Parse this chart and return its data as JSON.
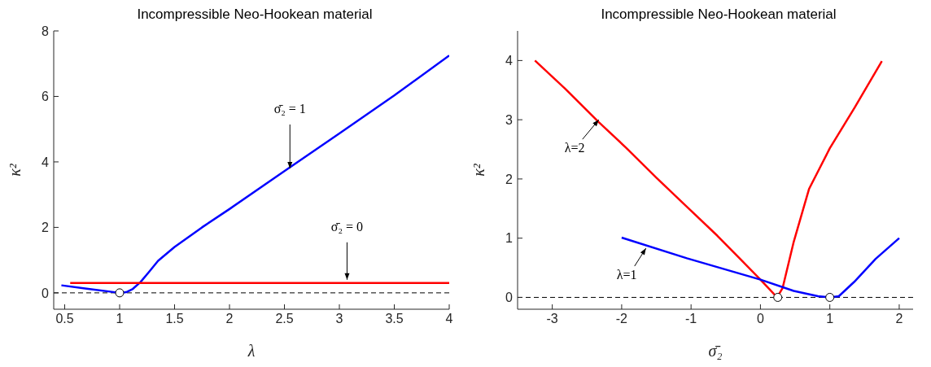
{
  "chart_data": [
    {
      "type": "line",
      "title": "Incompressible Neo-Hookean material",
      "xlabel": "λ",
      "ylabel": "κ²",
      "xlim": [
        0.4,
        4
      ],
      "ylim": [
        -0.5,
        8
      ],
      "xticks": [
        0.5,
        1,
        1.5,
        2,
        2.5,
        3,
        3.5,
        4
      ],
      "yticks": [
        0,
        2,
        4,
        6,
        8
      ],
      "line_style": "solid",
      "marker": "none",
      "series": [
        {
          "color": "#0000ff",
          "x": [
            0.47,
            0.7,
            1,
            1.06,
            1.12,
            1.19,
            1.27,
            1.35,
            1.5,
            1.75,
            2,
            2.5,
            3,
            3.5,
            4
          ],
          "values": [
            0.23,
            0.13,
            0,
            0.02,
            0.12,
            0.33,
            0.65,
            0.98,
            1.4,
            2.0,
            2.56,
            3.72,
            4.87,
            6.03,
            7.25
          ]
        },
        {
          "color": "#ff0000",
          "x": [
            0.55,
            4
          ],
          "values": [
            0.3,
            0.3
          ]
        },
        {
          "type": "scatter",
          "marker": "circle",
          "color": "#ffffff",
          "x": [
            1
          ],
          "values": [
            0
          ]
        }
      ],
      "ref_lines": [
        {
          "axis": "y",
          "value": 0,
          "color": "#000000",
          "line_style": "dashed"
        }
      ],
      "annotations": [
        {
          "text": "σ̄₂ = 1",
          "x": 2.55,
          "y": 3.8
        },
        {
          "text": "σ̄₂ = 0",
          "x": 3.07,
          "y": 0.4
        }
      ]
    },
    {
      "type": "line",
      "title": "Incompressible Neo-Hookean material",
      "xlabel": "σ̄₂",
      "ylabel": "κ²",
      "xlim": [
        -3.5,
        2.2
      ],
      "ylim": [
        -0.2,
        4.5
      ],
      "xticks": [
        -3,
        -2,
        -1,
        0,
        1,
        2
      ],
      "yticks": [
        0,
        1,
        2,
        3,
        4
      ],
      "line_style": "solid",
      "marker": "none",
      "series": [
        {
          "color": "#ff0000",
          "x": [
            -3.25,
            -2.81,
            -2.33,
            -1.93,
            -1.5,
            -1.06,
            -0.62,
            -0.31,
            0,
            0.24,
            0.32,
            0.48,
            0.7,
            1.0,
            1.36,
            1.75
          ],
          "values": [
            4,
            3.52,
            2.96,
            2.52,
            2.02,
            1.53,
            1.04,
            0.67,
            0.3,
            0,
            0.16,
            0.94,
            1.83,
            2.52,
            3.21,
            3.99
          ]
        },
        {
          "color": "#0000ff",
          "x": [
            -2,
            -1.06,
            0,
            0.48,
            0.83,
            1,
            1.13,
            1.35,
            1.66,
            2
          ],
          "values": [
            1.01,
            0.66,
            0.3,
            0.11,
            0.02,
            0,
            0.02,
            0.26,
            0.65,
            1.0
          ]
        },
        {
          "type": "scatter",
          "marker": "circle",
          "color": "#ffffff",
          "x": [
            0.25,
            1
          ],
          "values": [
            0,
            0
          ]
        }
      ],
      "ref_lines": [
        {
          "axis": "y",
          "value": 0,
          "color": "#000000",
          "line_style": "dashed"
        }
      ],
      "annotations": [
        {
          "text": "λ=2",
          "x": -2.33,
          "y": 3.0
        },
        {
          "text": "λ=1",
          "x": -1.65,
          "y": 0.83
        }
      ]
    }
  ]
}
